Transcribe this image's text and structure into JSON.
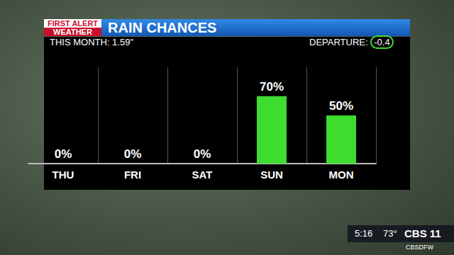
{
  "chart_data": {
    "type": "bar",
    "title": "RAIN CHANCES",
    "annotations": [
      "FIRST ALERT",
      "WEATHER",
      "THIS MONTH: 1.59\"",
      "DEPARTURE:",
      "-0.4",
      "5:16",
      "73°",
      "CBS 11",
      "CBSDFW"
    ],
    "categories": [
      "THU",
      "FRI",
      "SAT",
      "SUN",
      "MON"
    ],
    "values": [
      0,
      0,
      0,
      70,
      50
    ],
    "value_labels": [
      "0%",
      "0%",
      "0%",
      "70%",
      "50%"
    ],
    "color": "#3ddc2e",
    "ylim": [
      0,
      100
    ],
    "grid": true,
    "data_labels": true,
    "tick_labels": "x"
  }
}
